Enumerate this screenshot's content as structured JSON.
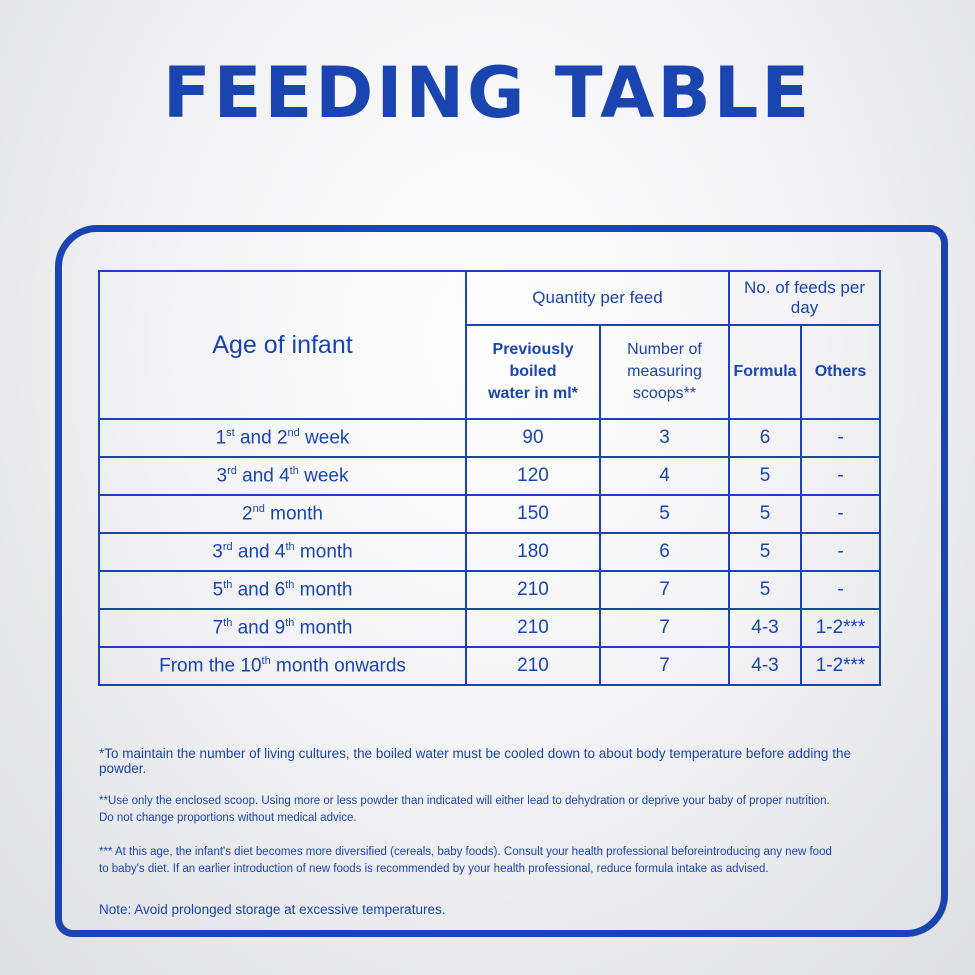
{
  "title": "FEEDING TABLE",
  "table": {
    "age_header": "Age of infant",
    "quantity_header": "Quantity per feed",
    "feeds_header": "No. of feeds per day",
    "water_header_l1": "Previously boiled",
    "water_header_l2": "water in ml*",
    "scoops_header_l1": "Number of",
    "scoops_header_l2": "measuring scoops**",
    "formula_header": "Formula",
    "others_header": "Others",
    "rows": [
      {
        "age_a": "1",
        "sup_a": "st",
        "mid": " and 2",
        "sup_b": "nd",
        "unit": " week",
        "water": "90",
        "scoops": "3",
        "formula": "6",
        "others": "-"
      },
      {
        "age_a": "3",
        "sup_a": "rd",
        "mid": " and 4",
        "sup_b": "th",
        "unit": " week",
        "water": "120",
        "scoops": "4",
        "formula": "5",
        "others": "-"
      },
      {
        "age_a": "2",
        "sup_a": "nd",
        "mid": "",
        "sup_b": "",
        "unit": " month",
        "water": "150",
        "scoops": "5",
        "formula": "5",
        "others": "-"
      },
      {
        "age_a": "3",
        "sup_a": "rd",
        "mid": " and 4",
        "sup_b": "th",
        "unit": " month",
        "water": "180",
        "scoops": "6",
        "formula": "5",
        "others": "-"
      },
      {
        "age_a": "5",
        "sup_a": "th",
        "mid": " and 6",
        "sup_b": "th",
        "unit": " month",
        "water": "210",
        "scoops": "7",
        "formula": "5",
        "others": "-"
      },
      {
        "age_a": "7",
        "sup_a": "th",
        "mid": " and 9",
        "sup_b": "th",
        "unit": " month",
        "water": "210",
        "scoops": "7",
        "formula": "4-3",
        "others": "1-2***"
      },
      {
        "age_a": "From the 10",
        "sup_a": "th",
        "mid": "",
        "sup_b": "",
        "unit": " month onwards",
        "water": "210",
        "scoops": "7",
        "formula": "4-3",
        "others": "1-2***"
      }
    ]
  },
  "notes": {
    "note1": "*To maintain the number of living cultures, the boiled water must be cooled down to about body temperature before adding the powder.",
    "note2_l1": "**Use only the enclosed scoop. Using more or less powder than indicated will either lead to dehydration or deprive your baby of proper nutrition.",
    "note2_l2": "Do not change proportions without medical advice.",
    "note3_l1": "*** At this age, the infant's diet becomes more diversified (cereals, baby foods). Consult your health professional beforeintroducing any new food",
    "note3_l2": "to baby's diet. If an earlier introduction of new foods is recommended by your health professional, reduce formula intake as advised.",
    "note4": "Note: Avoid prolonged storage at excessive temperatures."
  },
  "colors": {
    "accent": "#1a45b0"
  }
}
